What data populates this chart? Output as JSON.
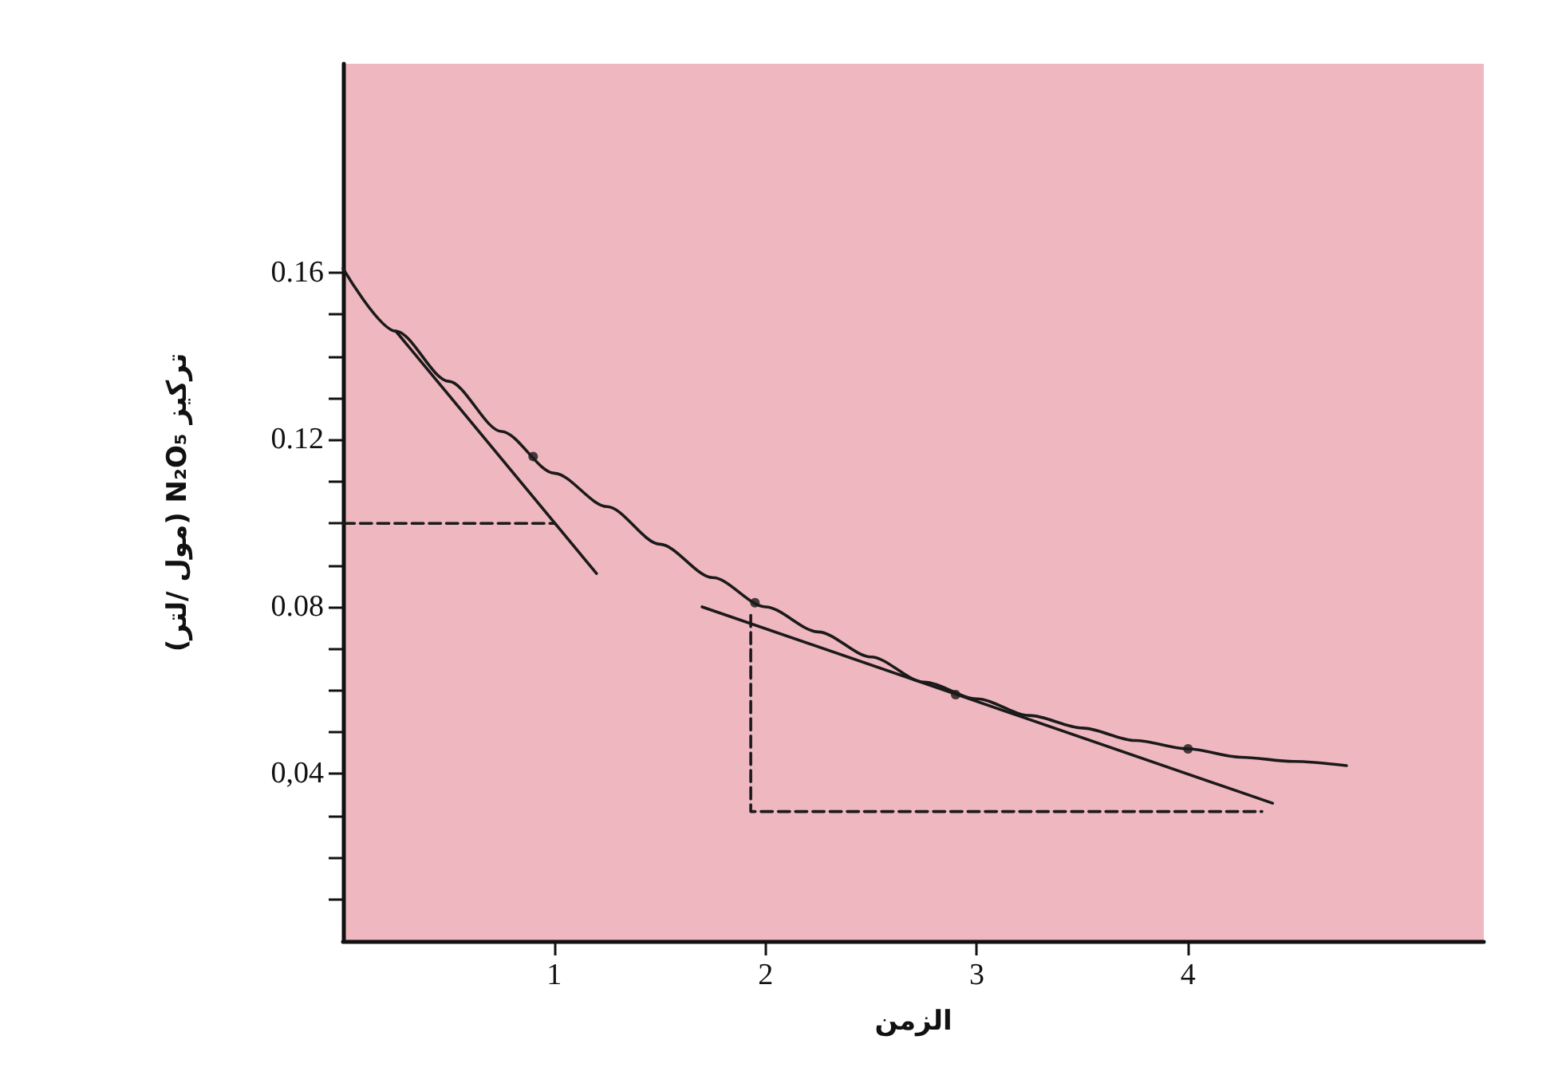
{
  "chart_data": {
    "type": "line",
    "xlabel": "الزمن",
    "ylabel": "تركيز N₂O₅ (مول /لتر)",
    "xlim": [
      0,
      5.4
    ],
    "ylim": [
      0,
      0.21
    ],
    "xticks": [
      1,
      2,
      3,
      4
    ],
    "yticks": [
      {
        "value": 0.01,
        "label": null
      },
      {
        "value": 0.02,
        "label": null
      },
      {
        "value": 0.03,
        "label": null
      },
      {
        "value": 0.04,
        "label": "0,04"
      },
      {
        "value": 0.05,
        "label": null
      },
      {
        "value": 0.06,
        "label": null
      },
      {
        "value": 0.07,
        "label": null
      },
      0.08,
      {
        "value": 0.09,
        "label": null
      },
      {
        "value": 0.1,
        "label": null
      },
      {
        "value": 0.11,
        "label": null
      },
      0.12,
      {
        "value": 0.13,
        "label": null
      },
      {
        "value": 0.14,
        "label": null
      },
      {
        "value": 0.15,
        "label": null
      },
      0.16
    ],
    "grid": false,
    "marker": "none",
    "line_style": "solid",
    "series": [
      {
        "color": "#1a1a1a",
        "x": [
          0,
          0.25,
          0.5,
          0.75,
          1,
          1.25,
          1.5,
          1.75,
          2,
          2.25,
          2.5,
          2.75,
          3,
          3.25,
          3.5,
          3.75,
          4,
          4.25,
          4.5,
          4.75
        ],
        "values": [
          0.161,
          0.146,
          0.134,
          0.122,
          0.112,
          0.104,
          0.095,
          0.087,
          0.08,
          0.074,
          0.068,
          0.062,
          0.058,
          0.054,
          0.051,
          0.048,
          0.046,
          0.044,
          0.043,
          0.042
        ]
      },
      {
        "type": "scatter",
        "marker": "circle",
        "color": "#1a1a1a",
        "x": [
          0.9,
          1.95,
          2.9,
          4.0
        ],
        "values": [
          0.116,
          0.081,
          0.059,
          0.046
        ]
      },
      {
        "color": "#1a1a1a",
        "x": [
          0.25,
          1.2
        ],
        "values": [
          0.146,
          0.088
        ]
      },
      {
        "color": "#1a1a1a",
        "x": [
          1.7,
          4.4
        ],
        "values": [
          0.08,
          0.033
        ]
      },
      {
        "color": "#1a1a1a",
        "line_style": "dashed",
        "x": [
          0,
          1
        ],
        "values": [
          0.1,
          0.1
        ]
      },
      {
        "color": "#1a1a1a",
        "line_style": "dashed",
        "x": [
          1.93,
          1.93,
          4.35
        ],
        "values": [
          0.078,
          0.031,
          0.031
        ]
      }
    ]
  }
}
